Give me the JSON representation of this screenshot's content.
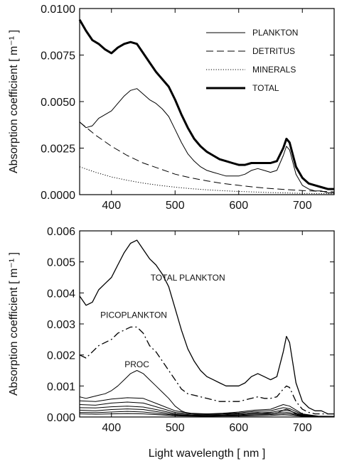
{
  "chart_data": [
    {
      "type": "line",
      "ylabel": "Absorption coefficient  [ m⁻¹ ]",
      "xlabel": "",
      "xlim": [
        350,
        750
      ],
      "ylim": [
        0,
        0.01
      ],
      "xticks": [
        "400",
        "500",
        "600",
        "700"
      ],
      "xtick_values": [
        400,
        500,
        600,
        700
      ],
      "yticks": [
        "0.0000",
        "0.0025",
        "0.0050",
        "0.0075",
        "0.0100"
      ],
      "ytick_values": [
        0,
        0.0025,
        0.005,
        0.0075,
        0.01
      ],
      "legend_position": "top-right",
      "series": [
        {
          "name": "PLANKTON",
          "style": "solid",
          "width": 1,
          "x": [
            350,
            360,
            370,
            380,
            390,
            400,
            410,
            420,
            430,
            440,
            450,
            460,
            470,
            480,
            490,
            500,
            510,
            520,
            530,
            540,
            550,
            560,
            570,
            580,
            590,
            600,
            610,
            620,
            630,
            640,
            650,
            660,
            670,
            675,
            680,
            690,
            700,
            710,
            720,
            730,
            740,
            750
          ],
          "y": [
            0.0039,
            0.0036,
            0.0037,
            0.0041,
            0.0043,
            0.0045,
            0.0049,
            0.0053,
            0.0056,
            0.0057,
            0.0054,
            0.0051,
            0.0049,
            0.0046,
            0.0042,
            0.0035,
            0.0028,
            0.0022,
            0.0018,
            0.0015,
            0.0013,
            0.0012,
            0.0011,
            0.001,
            0.001,
            0.001,
            0.0011,
            0.0013,
            0.0014,
            0.0013,
            0.0012,
            0.0013,
            0.0021,
            0.0026,
            0.0024,
            0.0011,
            0.0005,
            0.0003,
            0.0002,
            0.0002,
            0.0001,
            0.0001
          ]
        },
        {
          "name": "DETRITUS",
          "style": "dashed",
          "width": 1,
          "x": [
            350,
            375,
            400,
            425,
            450,
            475,
            500,
            525,
            550,
            575,
            600,
            625,
            650,
            675,
            700,
            725,
            750
          ],
          "y": [
            0.0039,
            0.0032,
            0.0026,
            0.0021,
            0.0017,
            0.0014,
            0.0011,
            0.0009,
            0.00074,
            0.0006,
            0.0005,
            0.0004,
            0.00033,
            0.00027,
            0.00022,
            0.00018,
            0.00015
          ]
        },
        {
          "name": "MINERALS",
          "style": "dotted",
          "width": 1,
          "x": [
            350,
            375,
            400,
            425,
            450,
            475,
            500,
            525,
            550,
            575,
            600,
            625,
            650,
            675,
            700,
            725,
            750
          ],
          "y": [
            0.0015,
            0.0012,
            0.00095,
            0.00077,
            0.00062,
            0.0005,
            0.0004,
            0.00032,
            0.00026,
            0.00021,
            0.00017,
            0.00014,
            0.00011,
            9e-05,
            7e-05,
            6e-05,
            5e-05
          ]
        },
        {
          "name": "TOTAL",
          "style": "solid",
          "width": 3,
          "x": [
            350,
            360,
            370,
            380,
            390,
            400,
            410,
            420,
            430,
            440,
            450,
            460,
            470,
            480,
            490,
            500,
            510,
            520,
            530,
            540,
            550,
            560,
            570,
            580,
            590,
            600,
            610,
            620,
            630,
            640,
            650,
            660,
            670,
            675,
            680,
            690,
            700,
            710,
            720,
            730,
            740,
            750
          ],
          "y": [
            0.0094,
            0.0088,
            0.0083,
            0.0081,
            0.0078,
            0.0076,
            0.0079,
            0.0081,
            0.0082,
            0.0081,
            0.0076,
            0.0071,
            0.0066,
            0.0062,
            0.0058,
            0.0051,
            0.0043,
            0.0036,
            0.003,
            0.0026,
            0.0023,
            0.0021,
            0.0019,
            0.0018,
            0.0017,
            0.0016,
            0.0016,
            0.0017,
            0.0017,
            0.0017,
            0.0017,
            0.0018,
            0.0025,
            0.003,
            0.0028,
            0.0015,
            0.0009,
            0.0006,
            0.0005,
            0.0004,
            0.0003,
            0.0003
          ]
        }
      ]
    },
    {
      "type": "line",
      "ylabel": "Absorption coefficient  [ m⁻¹ ]",
      "xlabel": "Light wavelength   [ nm ]",
      "xlim": [
        350,
        750
      ],
      "ylim": [
        0,
        0.006
      ],
      "xticks": [
        "400",
        "500",
        "600",
        "700"
      ],
      "xtick_values": [
        400,
        500,
        600,
        700
      ],
      "yticks": [
        "0.000",
        "0.001",
        "0.002",
        "0.003",
        "0.004",
        "0.005",
        "0.006"
      ],
      "ytick_values": [
        0,
        0.001,
        0.002,
        0.003,
        0.004,
        0.005,
        0.006
      ],
      "annotations": [
        {
          "text": "TOTAL PLANKTON",
          "x": 520,
          "y": 0.0044
        },
        {
          "text": "PICOPLANKTON",
          "x": 435,
          "y": 0.0032
        },
        {
          "text": "PROC",
          "x": 440,
          "y": 0.0016
        }
      ],
      "series": [
        {
          "style": "solid",
          "width": 1.3,
          "x": [
            350,
            360,
            370,
            380,
            390,
            400,
            410,
            420,
            430,
            440,
            450,
            460,
            470,
            480,
            490,
            500,
            510,
            520,
            530,
            540,
            550,
            560,
            570,
            580,
            590,
            600,
            610,
            620,
            630,
            640,
            650,
            660,
            670,
            675,
            680,
            690,
            700,
            710,
            720,
            730,
            740,
            750
          ],
          "y": [
            0.0039,
            0.0036,
            0.0037,
            0.0041,
            0.0043,
            0.0045,
            0.0049,
            0.0053,
            0.0056,
            0.0057,
            0.0054,
            0.0051,
            0.0049,
            0.0046,
            0.0042,
            0.0035,
            0.0028,
            0.0022,
            0.0018,
            0.0015,
            0.0013,
            0.0012,
            0.0011,
            0.001,
            0.001,
            0.001,
            0.0011,
            0.0013,
            0.0014,
            0.0013,
            0.0012,
            0.0013,
            0.0021,
            0.0026,
            0.0024,
            0.0011,
            0.0005,
            0.0003,
            0.0002,
            0.0002,
            0.0001,
            0.0001
          ]
        },
        {
          "style": "dashdot",
          "width": 1.3,
          "x": [
            350,
            360,
            370,
            380,
            390,
            400,
            410,
            420,
            430,
            440,
            450,
            460,
            470,
            480,
            490,
            500,
            510,
            520,
            530,
            540,
            550,
            560,
            570,
            580,
            590,
            600,
            610,
            620,
            630,
            640,
            650,
            660,
            670,
            675,
            680,
            690,
            700,
            710,
            720,
            730,
            740,
            750
          ],
          "y": [
            0.002,
            0.0019,
            0.0021,
            0.0023,
            0.0024,
            0.0025,
            0.0027,
            0.0028,
            0.0029,
            0.0029,
            0.0027,
            0.0023,
            0.0021,
            0.0018,
            0.0015,
            0.0012,
            0.0009,
            0.00075,
            0.0007,
            0.00065,
            0.0006,
            0.00055,
            0.0005,
            0.0005,
            0.0005,
            0.0005,
            0.00055,
            0.0006,
            0.00065,
            0.0006,
            0.0006,
            0.00065,
            0.0009,
            0.001,
            0.00095,
            0.0005,
            0.00025,
            0.00015,
            0.0001,
            0.0001,
            0.0001,
            0.0001
          ]
        },
        {
          "style": "solid",
          "width": 1,
          "x": [
            350,
            360,
            370,
            380,
            390,
            400,
            410,
            420,
            430,
            440,
            450,
            460,
            470,
            480,
            490,
            500,
            510,
            520,
            530,
            540,
            550,
            560,
            570,
            580,
            590,
            600,
            610,
            620,
            630,
            640,
            650,
            660,
            670,
            675,
            680,
            690,
            700,
            710,
            720,
            730,
            740,
            750
          ],
          "y": [
            0.00065,
            0.0006,
            0.00065,
            0.0007,
            0.00075,
            0.00085,
            0.001,
            0.0012,
            0.0014,
            0.0015,
            0.0014,
            0.0012,
            0.001,
            0.0008,
            0.0006,
            0.00035,
            0.0002,
            0.00012,
            0.0001,
            0.0001,
            0.0001,
            0.0001,
            0.0001,
            0.0001,
            0.0001,
            0.0001,
            0.00011,
            0.00013,
            0.00015,
            0.00013,
            0.00012,
            0.00013,
            0.00022,
            0.00025,
            0.00022,
            0.0001,
            5e-05,
            3e-05,
            2e-05,
            2e-05,
            2e-05,
            2e-05
          ]
        },
        {
          "style": "solid",
          "width": 1,
          "x": [
            350,
            375,
            400,
            425,
            450,
            475,
            500,
            525,
            550,
            575,
            600,
            625,
            650,
            670,
            680,
            700,
            725,
            750
          ],
          "y": [
            0.00052,
            0.0005,
            0.00058,
            0.00062,
            0.0006,
            0.0004,
            0.0002,
            0.00012,
            0.0001,
            0.00012,
            0.00016,
            0.00022,
            0.00025,
            0.0004,
            0.00035,
            0.0001,
            3e-05,
            2e-05
          ]
        },
        {
          "style": "solid",
          "width": 1,
          "x": [
            350,
            375,
            400,
            425,
            450,
            475,
            500,
            525,
            550,
            575,
            600,
            625,
            650,
            670,
            680,
            700,
            725,
            750
          ],
          "y": [
            0.0004,
            0.00038,
            0.00045,
            0.00048,
            0.00045,
            0.0003,
            0.00015,
            0.0001,
            8e-05,
            0.0001,
            0.00013,
            0.00018,
            0.0002,
            0.0003,
            0.00027,
            8e-05,
            2e-05,
            1e-05
          ]
        },
        {
          "style": "solid",
          "width": 1,
          "x": [
            350,
            375,
            400,
            425,
            450,
            475,
            500,
            525,
            550,
            575,
            600,
            625,
            650,
            670,
            680,
            700,
            725,
            750
          ],
          "y": [
            0.0003,
            0.00029,
            0.00033,
            0.00035,
            0.00032,
            0.00022,
            0.00011,
            7e-05,
            6e-05,
            7e-05,
            0.0001,
            0.00013,
            0.00015,
            0.00022,
            0.0002,
            6e-05,
            2e-05,
            1e-05
          ]
        },
        {
          "style": "solid",
          "width": 1,
          "x": [
            350,
            375,
            400,
            425,
            450,
            475,
            500,
            525,
            550,
            575,
            600,
            625,
            650,
            670,
            680,
            700,
            725,
            750
          ],
          "y": [
            0.00022,
            0.0002,
            0.00024,
            0.00026,
            0.00024,
            0.00016,
            8e-05,
            5e-05,
            4e-05,
            5e-05,
            7e-05,
            0.0001,
            0.00011,
            0.00016,
            0.00014,
            4e-05,
            1e-05,
            1e-05
          ]
        },
        {
          "style": "solid",
          "width": 1,
          "x": [
            350,
            375,
            400,
            425,
            450,
            475,
            500,
            525,
            550,
            575,
            600,
            625,
            650,
            670,
            680,
            700,
            725,
            750
          ],
          "y": [
            0.00015,
            0.00014,
            0.00016,
            0.00018,
            0.00016,
            0.00011,
            6e-05,
            4e-05,
            3e-05,
            4e-05,
            5e-05,
            7e-05,
            8e-05,
            0.00011,
            0.0001,
            3e-05,
            1e-05,
            1e-05
          ]
        },
        {
          "style": "solid",
          "width": 1,
          "x": [
            350,
            375,
            400,
            425,
            450,
            475,
            500,
            525,
            550,
            575,
            600,
            625,
            650,
            670,
            680,
            700,
            725,
            750
          ],
          "y": [
            0.0001,
            9e-05,
            0.0001,
            0.00011,
            0.0001,
            7e-05,
            4e-05,
            3e-05,
            2e-05,
            3e-05,
            3e-05,
            4e-05,
            5e-05,
            7e-05,
            6e-05,
            2e-05,
            1e-05,
            0.0
          ]
        }
      ]
    }
  ]
}
